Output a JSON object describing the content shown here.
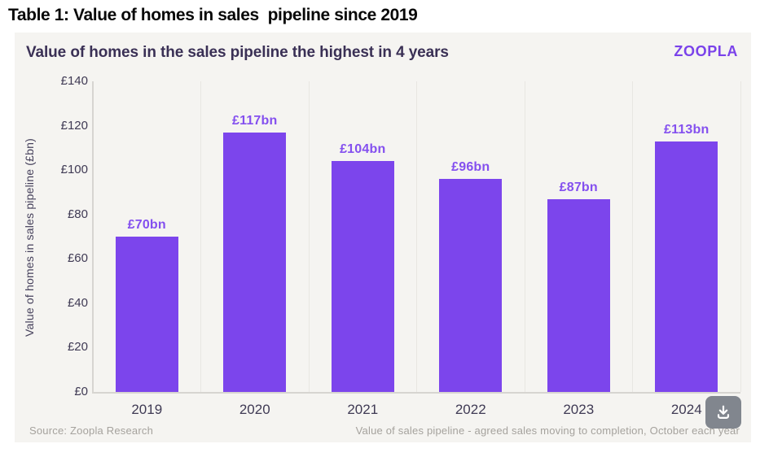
{
  "page_title": "Table 1: Value of homes in sales  pipeline since 2019",
  "card": {
    "title": "Value of homes in the sales pipeline the highest in 4 years",
    "logo": "zoopla"
  },
  "chart_data": {
    "type": "bar",
    "title": "Value of homes in the sales pipeline the highest in 4 years",
    "categories": [
      "2019",
      "2020",
      "2021",
      "2022",
      "2023",
      "2024"
    ],
    "values": [
      70,
      117,
      104,
      96,
      87,
      113
    ],
    "bar_labels": [
      "£70bn",
      "£117bn",
      "£104bn",
      "£96bn",
      "£87bn",
      "£113bn"
    ],
    "xlabel": "",
    "ylabel": "Value of homes in sales pipeline (£bn)",
    "ylim": [
      0,
      140
    ],
    "ytick_interval": 20,
    "ytick_labels": [
      "£0",
      "£20",
      "£40",
      "£60",
      "£80",
      "£100",
      "£120",
      "£140"
    ],
    "legend": "none",
    "grid": "vertical category separators only, no horizontal gridlines",
    "bar_color": "#7c45ec",
    "label_color": "#8450ef"
  },
  "footer": {
    "source": "Source: Zoopla Research",
    "note": "Value of sales pipeline - agreed sales moving to completion, October each year"
  },
  "download_button": {
    "icon": "download-icon"
  },
  "colors": {
    "card_background": "#f5f4f1",
    "page_background": "#ffffff",
    "title_text": "#3a3055",
    "axis_text": "#3f3a54",
    "axis_line": "#d7d5d1",
    "separator_line": "#e8e6e2",
    "footer_text": "#a5a29d",
    "brand_purple": "#7a42ea",
    "download_button_bg": "#81868e"
  }
}
